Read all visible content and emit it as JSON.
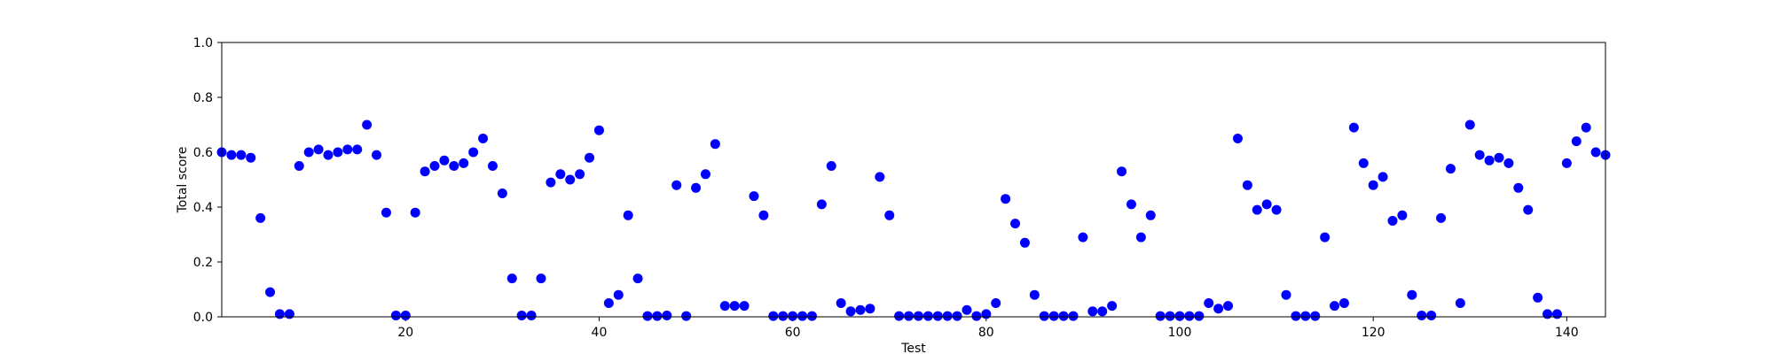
{
  "chart_data": {
    "type": "scatter",
    "title": "",
    "xlabel": "Test",
    "ylabel": "Total score",
    "xlim": [
      1,
      144
    ],
    "ylim": [
      0.0,
      1.0
    ],
    "xticks": [
      20,
      40,
      60,
      80,
      100,
      120,
      140
    ],
    "xtick_labels": [
      "20",
      "40",
      "60",
      "80",
      "100",
      "120",
      "140"
    ],
    "yticks": [
      0.0,
      0.2,
      0.4,
      0.6,
      0.8,
      1.0
    ],
    "ytick_labels": [
      "0.0",
      "0.2",
      "0.4",
      "0.6",
      "0.8",
      "1.0"
    ],
    "grid": false,
    "marker_color": "#0000ff",
    "series": [
      {
        "name": "",
        "x": [
          1,
          2,
          3,
          4,
          5,
          6,
          7,
          8,
          9,
          10,
          11,
          12,
          13,
          14,
          15,
          16,
          17,
          18,
          19,
          20,
          21,
          22,
          23,
          24,
          25,
          26,
          27,
          28,
          29,
          30,
          31,
          32,
          33,
          34,
          35,
          36,
          37,
          38,
          39,
          40,
          41,
          42,
          43,
          44,
          45,
          46,
          47,
          48,
          49,
          50,
          51,
          52,
          53,
          54,
          55,
          56,
          57,
          58,
          59,
          60,
          61,
          62,
          63,
          64,
          65,
          66,
          67,
          68,
          69,
          70,
          71,
          72,
          73,
          74,
          75,
          76,
          77,
          78,
          79,
          80,
          81,
          82,
          83,
          84,
          85,
          86,
          87,
          88,
          89,
          90,
          91,
          92,
          93,
          94,
          95,
          96,
          97,
          98,
          99,
          100,
          101,
          102,
          103,
          104,
          105,
          106,
          107,
          108,
          109,
          110,
          111,
          112,
          113,
          114,
          115,
          116,
          117,
          118,
          119,
          120,
          121,
          122,
          123,
          124,
          125,
          126,
          127,
          128,
          129,
          130,
          131,
          132,
          133,
          134,
          135,
          136,
          137,
          138,
          139,
          140,
          141,
          142,
          143,
          144
        ],
        "y": [
          0.6,
          0.59,
          0.59,
          0.58,
          0.36,
          0.09,
          0.01,
          0.01,
          0.55,
          0.6,
          0.61,
          0.59,
          0.6,
          0.61,
          0.61,
          0.7,
          0.59,
          0.38,
          0.005,
          0.005,
          0.38,
          0.53,
          0.55,
          0.57,
          0.55,
          0.56,
          0.6,
          0.65,
          0.55,
          0.45,
          0.14,
          0.005,
          0.005,
          0.14,
          0.49,
          0.52,
          0.5,
          0.52,
          0.58,
          0.68,
          0.05,
          0.08,
          0.37,
          0.14,
          0.003,
          0.003,
          0.005,
          0.48,
          0.003,
          0.47,
          0.52,
          0.63,
          0.04,
          0.04,
          0.04,
          0.44,
          0.37,
          0.003,
          0.003,
          0.003,
          0.003,
          0.003,
          0.41,
          0.55,
          0.05,
          0.02,
          0.025,
          0.03,
          0.51,
          0.37,
          0.003,
          0.003,
          0.003,
          0.003,
          0.003,
          0.003,
          0.003,
          0.025,
          0.003,
          0.01,
          0.05,
          0.43,
          0.34,
          0.27,
          0.08,
          0.003,
          0.003,
          0.003,
          0.003,
          0.29,
          0.02,
          0.02,
          0.04,
          0.53,
          0.41,
          0.29,
          0.37,
          0.003,
          0.003,
          0.003,
          0.003,
          0.003,
          0.05,
          0.03,
          0.04,
          0.65,
          0.48,
          0.39,
          0.41,
          0.39,
          0.08,
          0.003,
          0.003,
          0.003,
          0.29,
          0.04,
          0.05,
          0.69,
          0.56,
          0.48,
          0.51,
          0.35,
          0.37,
          0.08,
          0.005,
          0.005,
          0.36,
          0.54,
          0.05,
          0.7,
          0.59,
          0.57,
          0.58,
          0.56,
          0.47,
          0.39,
          0.07,
          0.01,
          0.01,
          0.56,
          0.64,
          0.69,
          0.6,
          0.59
        ]
      }
    ]
  }
}
